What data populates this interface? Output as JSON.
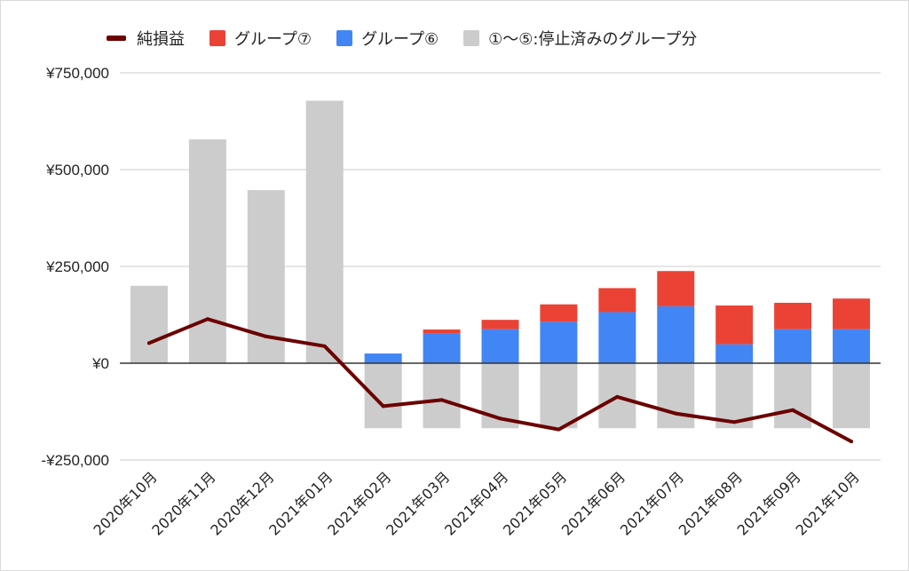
{
  "colors": {
    "net": "#6b0000",
    "group7": "#ea4335",
    "group6": "#4285f4",
    "stopped": "#cccccc",
    "grid": "#cccccc",
    "zero_axis": "#333333",
    "text": "#222222"
  },
  "chart_data": {
    "type": "bar",
    "stacked": true,
    "legend": {
      "position": "top",
      "items": [
        {
          "label": "純損益",
          "type": "line",
          "color_key": "net"
        },
        {
          "label": "グループ⑦",
          "type": "bar",
          "color_key": "group7"
        },
        {
          "label": "グループ⑥",
          "type": "bar",
          "color_key": "group6"
        },
        {
          "label": "①～⑤:停止済みのグループ分",
          "type": "bar",
          "color_key": "stopped"
        }
      ]
    },
    "categories": [
      "2020年10月",
      "2020年11月",
      "2020年12月",
      "2021年01月",
      "2021年02月",
      "2021年03月",
      "2021年04月",
      "2021年05月",
      "2021年06月",
      "2021年07月",
      "2021年08月",
      "2021年09月",
      "2021年10月"
    ],
    "ylim": [
      -250000,
      750000
    ],
    "yticks": [
      -250000,
      0,
      250000,
      500000,
      750000
    ],
    "ytick_labels": [
      "-¥250,000",
      "¥0",
      "¥250,000",
      "¥500,000",
      "¥750,000"
    ],
    "grid": true,
    "series": [
      {
        "name": "①～⑤:停止済みのグループ分",
        "type": "bar",
        "color_key": "stopped",
        "values": [
          200000,
          578000,
          447000,
          678000,
          -168000,
          -168000,
          -168000,
          -168000,
          -168000,
          -168000,
          -168000,
          -168000,
          -168000
        ]
      },
      {
        "name": "グループ⑥",
        "type": "bar",
        "color_key": "group6",
        "values": [
          0,
          0,
          0,
          0,
          25000,
          77000,
          88000,
          107000,
          132000,
          147000,
          49000,
          88000,
          88000
        ]
      },
      {
        "name": "グループ⑦",
        "type": "bar",
        "color_key": "group7",
        "values": [
          0,
          0,
          0,
          0,
          0,
          10000,
          24000,
          45000,
          62000,
          91000,
          100000,
          68000,
          79000
        ]
      },
      {
        "name": "純損益",
        "type": "line",
        "color_key": "net",
        "values": [
          52000,
          114000,
          69000,
          44000,
          -111000,
          -95000,
          -143000,
          -171000,
          -87000,
          -130000,
          -152000,
          -121000,
          -202000
        ]
      }
    ]
  }
}
